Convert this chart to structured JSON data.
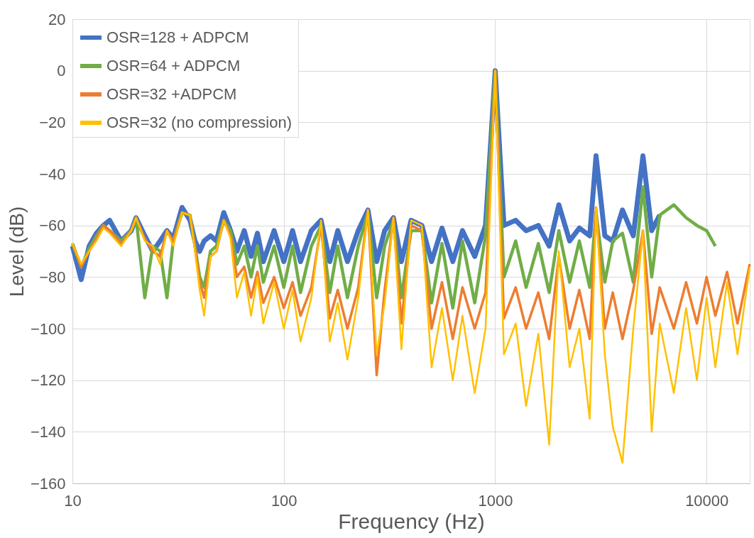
{
  "chart_data": {
    "type": "line",
    "xlabel": "Frequency (Hz)",
    "ylabel": "Level (dB)",
    "log": "x",
    "grid": true,
    "legend": "top left",
    "marker": "none",
    "line_style": "solid",
    "xlim": [
      10,
      16000
    ],
    "xticks": [
      10,
      100,
      1000,
      10000
    ],
    "ylim": [
      -160,
      20
    ],
    "yticks": [
      -160,
      -140,
      -120,
      -100,
      -80,
      -60,
      -40,
      -20,
      0,
      20
    ],
    "series": [
      {
        "name": "OSR=128 + ADPCM",
        "color": "#4472c4",
        "x": [
          10,
          11,
          12,
          13,
          14,
          15,
          17,
          19,
          20,
          22,
          24,
          26,
          28,
          30,
          33,
          36,
          38,
          40,
          42,
          45,
          48,
          52,
          56,
          60,
          65,
          70,
          75,
          80,
          90,
          100,
          110,
          120,
          135,
          150,
          165,
          180,
          200,
          225,
          250,
          275,
          300,
          330,
          360,
          400,
          450,
          500,
          560,
          630,
          700,
          800,
          900,
          1000,
          1100,
          1250,
          1400,
          1600,
          1800,
          2000,
          2250,
          2500,
          2800,
          3000,
          3300,
          3600,
          4000,
          4500,
          5000,
          5500,
          6000
        ],
        "values": [
          -68,
          -81,
          -68,
          -63,
          -60,
          -58,
          -66,
          -62,
          -57,
          -64,
          -70,
          -66,
          -62,
          -65,
          -53,
          -58,
          -66,
          -70,
          -66,
          -64,
          -66,
          -55,
          -62,
          -70,
          -62,
          -72,
          -63,
          -74,
          -62,
          -74,
          -62,
          -74,
          -62,
          -58,
          -74,
          -62,
          -74,
          -62,
          -54,
          -74,
          -62,
          -57,
          -74,
          -58,
          -60,
          -74,
          -61,
          -74,
          -62,
          -72,
          -60,
          0,
          -60,
          -58,
          -62,
          -60,
          -68,
          -52,
          -66,
          -61,
          -64,
          -33,
          -64,
          -66,
          -54,
          -64,
          -33,
          -62,
          -56
        ]
      },
      {
        "name": "OSR=64 + ADPCM",
        "color": "#70ad47",
        "x": [
          10,
          11,
          12,
          13,
          14,
          15,
          17,
          19,
          20,
          22,
          24,
          26,
          28,
          30,
          33,
          36,
          38,
          40,
          42,
          45,
          48,
          52,
          56,
          60,
          65,
          70,
          75,
          80,
          90,
          100,
          110,
          120,
          135,
          150,
          165,
          180,
          200,
          225,
          250,
          275,
          300,
          330,
          360,
          400,
          450,
          500,
          560,
          630,
          700,
          800,
          900,
          1000,
          1100,
          1250,
          1400,
          1600,
          1800,
          2000,
          2250,
          2500,
          2800,
          3000,
          3300,
          3600,
          4000,
          4500,
          5000,
          5500,
          6000,
          7000,
          8000,
          9000,
          10000,
          11000
        ],
        "values": [
          -67,
          -76,
          -69,
          -64,
          -60,
          -62,
          -66,
          -62,
          -57,
          -88,
          -68,
          -70,
          -88,
          -66,
          -55,
          -56,
          -68,
          -80,
          -84,
          -70,
          -68,
          -58,
          -62,
          -75,
          -68,
          -80,
          -68,
          -82,
          -68,
          -84,
          -68,
          -86,
          -68,
          -60,
          -86,
          -68,
          -88,
          -68,
          -55,
          -88,
          -68,
          -58,
          -88,
          -62,
          -62,
          -90,
          -67,
          -92,
          -66,
          -90,
          -64,
          0,
          -80,
          -66,
          -84,
          -67,
          -86,
          -62,
          -82,
          -66,
          -84,
          -55,
          -82,
          -66,
          -63,
          -82,
          -45,
          -80,
          -56,
          -52,
          -57,
          -60,
          -62,
          -68
        ]
      },
      {
        "name": "OSR=32 +ADPCM",
        "color": "#ed7d31",
        "x": [
          10,
          11,
          12,
          13,
          14,
          15,
          17,
          19,
          20,
          22,
          24,
          26,
          28,
          30,
          33,
          36,
          38,
          40,
          42,
          45,
          48,
          52,
          56,
          60,
          65,
          70,
          75,
          80,
          90,
          100,
          110,
          120,
          135,
          150,
          165,
          180,
          200,
          225,
          250,
          275,
          300,
          330,
          360,
          400,
          450,
          500,
          560,
          630,
          700,
          800,
          900,
          1000,
          1100,
          1250,
          1400,
          1600,
          1800,
          2000,
          2250,
          2500,
          2800,
          3000,
          3300,
          3600,
          4000,
          4500,
          5000,
          5500,
          6000,
          7000,
          8000,
          9000,
          10000,
          11000,
          12500,
          14000,
          16000
        ],
        "values": [
          -67,
          -76,
          -70,
          -65,
          -60,
          -62,
          -67,
          -62,
          -57,
          -65,
          -70,
          -72,
          -62,
          -66,
          -55,
          -56,
          -68,
          -82,
          -88,
          -72,
          -70,
          -58,
          -64,
          -80,
          -76,
          -88,
          -78,
          -90,
          -80,
          -92,
          -82,
          -95,
          -84,
          -60,
          -96,
          -85,
          -100,
          -84,
          -54,
          -118,
          -85,
          -57,
          -98,
          -60,
          -62,
          -100,
          -82,
          -104,
          -84,
          -100,
          -86,
          0,
          -96,
          -84,
          -100,
          -86,
          -104,
          -72,
          -100,
          -85,
          -104,
          -53,
          -100,
          -86,
          -104,
          -85,
          -62,
          -102,
          -84,
          -100,
          -82,
          -98,
          -80,
          -95,
          -78,
          -98,
          -75
        ]
      },
      {
        "name": "OSR=32 (no compression)",
        "color": "#ffc000",
        "x": [
          10,
          11,
          12,
          13,
          14,
          15,
          17,
          19,
          20,
          22,
          24,
          26,
          28,
          30,
          33,
          36,
          38,
          40,
          42,
          45,
          48,
          52,
          56,
          60,
          65,
          70,
          75,
          80,
          90,
          100,
          110,
          120,
          135,
          150,
          165,
          180,
          200,
          225,
          250,
          275,
          300,
          330,
          360,
          400,
          450,
          500,
          560,
          630,
          700,
          800,
          900,
          1000,
          1100,
          1250,
          1400,
          1600,
          1800,
          2000,
          2250,
          2500,
          2800,
          3000,
          3300,
          3600,
          4000,
          4500,
          5000,
          5500,
          6000,
          7000,
          8000,
          9000,
          10000,
          11000,
          12500,
          14000,
          16000
        ],
        "values": [
          -67,
          -75,
          -70,
          -66,
          -61,
          -63,
          -68,
          -62,
          -57,
          -66,
          -68,
          -75,
          -62,
          -68,
          -55,
          -56,
          -70,
          -85,
          -95,
          -72,
          -70,
          -58,
          -65,
          -88,
          -78,
          -95,
          -80,
          -98,
          -82,
          -100,
          -85,
          -105,
          -88,
          -58,
          -105,
          -90,
          -112,
          -88,
          -54,
          -110,
          -90,
          -57,
          -108,
          -58,
          -60,
          -115,
          -92,
          -120,
          -95,
          -125,
          -100,
          0,
          -110,
          -98,
          -130,
          -102,
          -145,
          -70,
          -115,
          -100,
          -135,
          -53,
          -110,
          -138,
          -152,
          -100,
          -62,
          -140,
          -98,
          -125,
          -92,
          -120,
          -88,
          -115,
          -82,
          -110,
          -76
        ]
      }
    ]
  }
}
